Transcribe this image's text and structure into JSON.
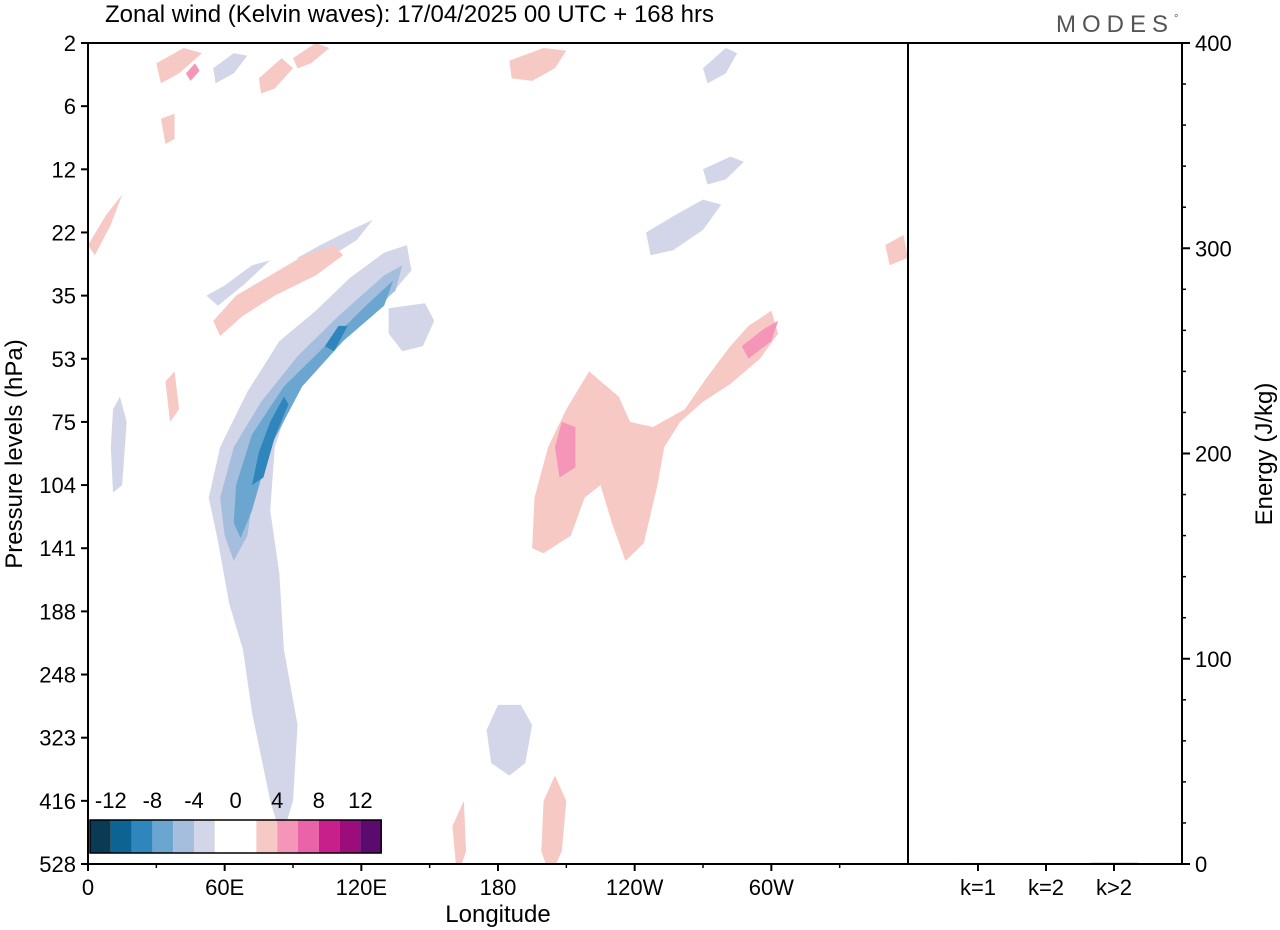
{
  "header": {
    "title": "Zonal wind (Kelvin waves):  17/04/2025  00 UTC  + 168 hrs",
    "brand": "MODES",
    "brand_mark": "°"
  },
  "chart_data": [
    {
      "type": "heatmap",
      "title": "Zonal wind (Kelvin waves):  17/04/2025  00 UTC  + 168 hrs",
      "xlabel": "Longitude",
      "ylabel": "Pressure levels (hPa)",
      "x_ticks": [
        "0",
        "60E",
        "120E",
        "180",
        "120W",
        "60W"
      ],
      "x_tick_values": [
        0,
        60,
        120,
        180,
        240,
        300
      ],
      "xlim": [
        0,
        360
      ],
      "y_ticks": [
        "2",
        "6",
        "12",
        "22",
        "35",
        "53",
        "75",
        "104",
        "141",
        "188",
        "248",
        "323",
        "416",
        "528"
      ],
      "y_scale": "inverted pressure levels (top 2 hPa, bottom 528 hPa)",
      "grid": false,
      "colorbar": {
        "labels": [
          "-12",
          "-8",
          "-4",
          "0",
          "4",
          "8",
          "12"
        ],
        "colors": [
          "#0b3a55",
          "#0c6494",
          "#2f86bd",
          "#6aa6cf",
          "#a6bedd",
          "#d3d6e8",
          "#ffffff",
          "#ffffff",
          "#f7c9c4",
          "#f595b8",
          "#ea62a8",
          "#c81f8a",
          "#9a0d7a",
          "#5b0a6e"
        ],
        "placement": "bottom-left"
      },
      "regions": [
        {
          "sign": "negative",
          "level": 4,
          "points": [
            [
              57,
              197
            ],
            [
              53,
              180
            ],
            [
              58,
              160
            ],
            [
              70,
              138
            ],
            [
              84,
              118
            ],
            [
              100,
              106
            ],
            [
              115,
              93
            ],
            [
              130,
              83
            ],
            [
              140,
              80
            ],
            [
              142,
              90
            ],
            [
              125,
              108
            ],
            [
              105,
              120
            ],
            [
              90,
              138
            ],
            [
              82,
              160
            ],
            [
              80,
              185
            ],
            [
              84,
              210
            ],
            [
              86,
              240
            ],
            [
              92,
              270
            ],
            [
              90,
              300
            ],
            [
              85,
              315
            ],
            [
              80,
              300
            ],
            [
              72,
              265
            ],
            [
              68,
              240
            ],
            [
              62,
              222
            ]
          ]
        },
        {
          "sign": "negative",
          "level": 4,
          "points": [
            [
              132,
              105
            ],
            [
              148,
              103
            ],
            [
              152,
              110
            ],
            [
              147,
              120
            ],
            [
              138,
              122
            ],
            [
              132,
              115
            ]
          ]
        },
        {
          "sign": "negative",
          "level": 4,
          "points": [
            [
              92,
              85
            ],
            [
              102,
              80
            ],
            [
              113,
              75
            ],
            [
              125,
              70
            ],
            [
              118,
              78
            ],
            [
              104,
              86
            ],
            [
              93,
              92
            ]
          ]
        },
        {
          "sign": "negative",
          "level": 4,
          "points": [
            [
              52,
              100
            ],
            [
              60,
              96
            ],
            [
              72,
              88
            ],
            [
              80,
              86
            ],
            [
              68,
              96
            ],
            [
              57,
              104
            ]
          ]
        },
        {
          "sign": "negative",
          "level": 4,
          "points": [
            [
              175,
              272
            ],
            [
              180,
              262
            ],
            [
              190,
              262
            ],
            [
              195,
              270
            ],
            [
              192,
              285
            ],
            [
              185,
              290
            ],
            [
              177,
              285
            ]
          ]
        },
        {
          "sign": "negative",
          "level": 4,
          "points": [
            [
              245,
              75
            ],
            [
              258,
              68
            ],
            [
              270,
              62
            ],
            [
              278,
              64
            ],
            [
              270,
              74
            ],
            [
              257,
              82
            ],
            [
              247,
              84
            ]
          ]
        },
        {
          "sign": "negative",
          "level": 4,
          "points": [
            [
              270,
              50
            ],
            [
              282,
              45
            ],
            [
              288,
              47
            ],
            [
              280,
              54
            ],
            [
              272,
              56
            ]
          ]
        },
        {
          "sign": "negative",
          "level": 4,
          "points": [
            [
              11,
              145
            ],
            [
              14,
              140
            ],
            [
              17,
              150
            ],
            [
              15,
              175
            ],
            [
              11,
              178
            ],
            [
              10,
              160
            ]
          ]
        },
        {
          "sign": "negative",
          "level": 4,
          "points": [
            [
              55,
              10
            ],
            [
              64,
              4
            ],
            [
              70,
              5
            ],
            [
              64,
              12
            ],
            [
              56,
              16
            ]
          ]
        },
        {
          "sign": "negative",
          "level": 4,
          "points": [
            [
              270,
              10
            ],
            [
              280,
              2
            ],
            [
              285,
              4
            ],
            [
              280,
              12
            ],
            [
              272,
              16
            ]
          ]
        },
        {
          "sign": "negative",
          "level": 8,
          "points": [
            [
              60,
              195
            ],
            [
              58,
              180
            ],
            [
              64,
              160
            ],
            [
              76,
              142
            ],
            [
              92,
              124
            ],
            [
              110,
              108
            ],
            [
              130,
              92
            ],
            [
              138,
              88
            ],
            [
              135,
              98
            ],
            [
              120,
              110
            ],
            [
              100,
              126
            ],
            [
              84,
              146
            ],
            [
              74,
              170
            ],
            [
              70,
              195
            ],
            [
              64,
              205
            ]
          ]
        },
        {
          "sign": "negative",
          "level": 12,
          "points": [
            [
              64,
              190
            ],
            [
              65,
              175
            ],
            [
              72,
              155
            ],
            [
              86,
              136
            ],
            [
              104,
              120
            ],
            [
              122,
              104
            ],
            [
              134,
              94
            ],
            [
              130,
              104
            ],
            [
              112,
              118
            ],
            [
              94,
              136
            ],
            [
              80,
              160
            ],
            [
              72,
              185
            ],
            [
              67,
              196
            ]
          ]
        },
        {
          "sign": "negative",
          "level": 16,
          "points": [
            [
              72,
              175
            ],
            [
              75,
              162
            ],
            [
              80,
              150
            ],
            [
              86,
              140
            ],
            [
              88,
              143
            ],
            [
              82,
              156
            ],
            [
              77,
              172
            ]
          ]
        },
        {
          "sign": "negative",
          "level": 16,
          "points": [
            [
              104,
              120
            ],
            [
              110,
              112
            ],
            [
              114,
              112
            ],
            [
              108,
              122
            ]
          ]
        },
        {
          "sign": "positive",
          "level": 4,
          "points": [
            [
              195,
              200
            ],
            [
              196,
              180
            ],
            [
              202,
              160
            ],
            [
              210,
              145
            ],
            [
              220,
              130
            ],
            [
              233,
              140
            ],
            [
              238,
              150
            ],
            [
              248,
              152
            ],
            [
              262,
              145
            ],
            [
              272,
              132
            ],
            [
              282,
              120
            ],
            [
              290,
              112
            ],
            [
              300,
              106
            ],
            [
              303,
              115
            ],
            [
              295,
              125
            ],
            [
              282,
              135
            ],
            [
              270,
              142
            ],
            [
              260,
              150
            ],
            [
              253,
              160
            ],
            [
              250,
              175
            ],
            [
              244,
              198
            ],
            [
              236,
              205
            ],
            [
              230,
              190
            ],
            [
              225,
              175
            ],
            [
              218,
              180
            ],
            [
              212,
              195
            ],
            [
              200,
              202
            ]
          ]
        },
        {
          "sign": "positive",
          "level": 4,
          "points": [
            [
              55,
              110
            ],
            [
              65,
              100
            ],
            [
              80,
              92
            ],
            [
              95,
              84
            ],
            [
              108,
              80
            ],
            [
              112,
              84
            ],
            [
              100,
              92
            ],
            [
              82,
              100
            ],
            [
              68,
              108
            ],
            [
              58,
              116
            ]
          ]
        },
        {
          "sign": "positive",
          "level": 4,
          "points": [
            [
              0,
              80
            ],
            [
              8,
              68
            ],
            [
              15,
              60
            ],
            [
              10,
              72
            ],
            [
              3,
              84
            ]
          ]
        },
        {
          "sign": "positive",
          "level": 4,
          "points": [
            [
              200,
              300
            ],
            [
              205,
              290
            ],
            [
              210,
              300
            ],
            [
              208,
              320
            ],
            [
              203,
              330
            ],
            [
              199,
              320
            ]
          ]
        },
        {
          "sign": "positive",
          "level": 4,
          "points": [
            [
              160,
              310
            ],
            [
              165,
              300
            ],
            [
              166,
              320
            ],
            [
              162,
              330
            ]
          ]
        },
        {
          "sign": "positive",
          "level": 4,
          "points": [
            [
              185,
              7
            ],
            [
              200,
              2
            ],
            [
              210,
              3
            ],
            [
              205,
              10
            ],
            [
              195,
              15
            ],
            [
              186,
              14
            ]
          ]
        },
        {
          "sign": "positive",
          "level": 4,
          "points": [
            [
              75,
              14
            ],
            [
              85,
              6
            ],
            [
              90,
              10
            ],
            [
              82,
              18
            ],
            [
              76,
              20
            ]
          ]
        },
        {
          "sign": "positive",
          "level": 4,
          "points": [
            [
              30,
              8
            ],
            [
              42,
              2
            ],
            [
              50,
              4
            ],
            [
              40,
              12
            ],
            [
              32,
              16
            ]
          ]
        },
        {
          "sign": "positive",
          "level": 4,
          "points": [
            [
              90,
              6
            ],
            [
              100,
              0
            ],
            [
              106,
              2
            ],
            [
              98,
              8
            ],
            [
              92,
              10
            ]
          ]
        },
        {
          "sign": "positive",
          "level": 4,
          "points": [
            [
              32,
              30
            ],
            [
              38,
              28
            ],
            [
              38,
              38
            ],
            [
              34,
              40
            ]
          ]
        },
        {
          "sign": "positive",
          "level": 4,
          "points": [
            [
              34,
              134
            ],
            [
              38,
              130
            ],
            [
              40,
              145
            ],
            [
              36,
              150
            ]
          ]
        },
        {
          "sign": "positive",
          "level": 4,
          "points": [
            [
              350,
              80
            ],
            [
              358,
              76
            ],
            [
              360,
              85
            ],
            [
              352,
              88
            ]
          ]
        },
        {
          "sign": "positive",
          "level": 8,
          "points": [
            [
              205,
              160
            ],
            [
              208,
              150
            ],
            [
              214,
              152
            ],
            [
              214,
              168
            ],
            [
              207,
              172
            ]
          ]
        },
        {
          "sign": "positive",
          "level": 8,
          "points": [
            [
              287,
              120
            ],
            [
              297,
              113
            ],
            [
              303,
              110
            ],
            [
              300,
              118
            ],
            [
              290,
              125
            ]
          ]
        },
        {
          "sign": "positive",
          "level": 8,
          "points": [
            [
              43,
              12
            ],
            [
              47,
              8
            ],
            [
              49,
              11
            ],
            [
              45,
              15
            ]
          ]
        }
      ]
    },
    {
      "type": "bar",
      "categories": [
        "k=1",
        "k=2",
        "k>2"
      ],
      "values": [
        0.5,
        0.3,
        0.6
      ],
      "ylabel": "Energy (J/kg)",
      "y_ticks": [
        "0",
        "100",
        "200",
        "300",
        "400"
      ],
      "ylim": [
        0,
        400
      ]
    }
  ]
}
